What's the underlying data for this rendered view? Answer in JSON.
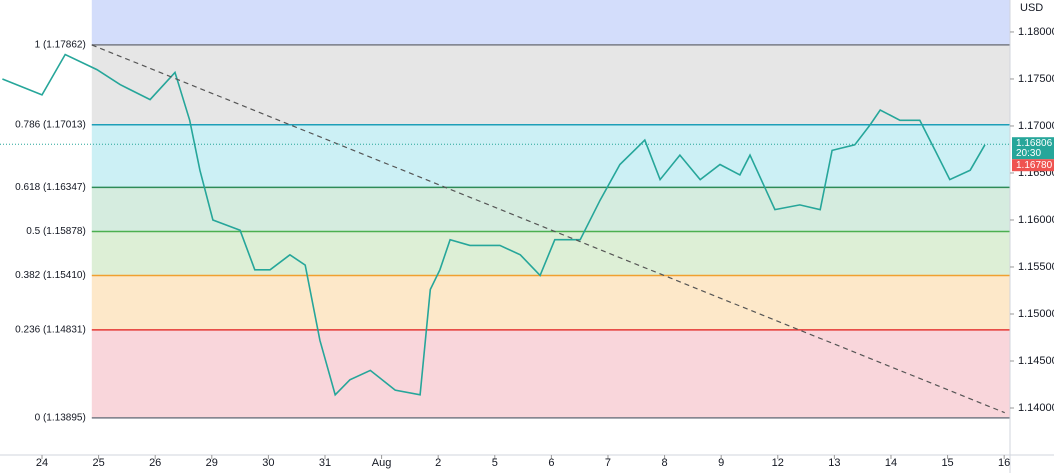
{
  "chart_data": {
    "type": "line",
    "axis_title": "USD",
    "x": [
      -0.7,
      0,
      0.41,
      0.97,
      1.38,
      1.91,
      2.35,
      2.61,
      2.79,
      3.02,
      3.5,
      3.76,
      4.03,
      4.38,
      4.65,
      4.91,
      5.18,
      5.44,
      5.8,
      6.24,
      6.68,
      6.86,
      7.03,
      7.21,
      7.56,
      8.09,
      8.45,
      8.8,
      9.06,
      9.51,
      9.86,
      10.21,
      10.65,
      10.92,
      11.27,
      11.63,
      11.98,
      12.33,
      12.51,
      12.95,
      13.39,
      13.75,
      13.96,
      14.36,
      14.63,
      14.81,
      15.16,
      15.51,
      15.78,
      16.04,
      16.4,
      16.66
    ],
    "values": [
      1.175,
      1.1733,
      1.1776,
      1.176,
      1.1744,
      1.1728,
      1.1757,
      1.1706,
      1.1653,
      1.16,
      1.1589,
      1.1547,
      1.1547,
      1.1563,
      1.1552,
      1.1472,
      1.1414,
      1.143,
      1.144,
      1.1419,
      1.1414,
      1.1526,
      1.1547,
      1.1579,
      1.1573,
      1.1573,
      1.1563,
      1.1541,
      1.1579,
      1.1579,
      1.1621,
      1.1659,
      1.1685,
      1.1643,
      1.1669,
      1.1643,
      1.1659,
      1.1648,
      1.1669,
      1.1611,
      1.1616,
      1.1611,
      1.1674,
      1.168,
      1.1701,
      1.1717,
      1.1706,
      1.1706,
      1.1674,
      1.1643,
      1.1653,
      1.168
    ],
    "color": "#26a69a",
    "xlim": [
      -0.742,
      17.103
    ],
    "xticks": [
      {
        "value": 0,
        "label": "24"
      },
      {
        "value": 1,
        "label": "25"
      },
      {
        "value": 2,
        "label": "26"
      },
      {
        "value": 3,
        "label": "29"
      },
      {
        "value": 4,
        "label": "30"
      },
      {
        "value": 5,
        "label": "31"
      },
      {
        "value": 6,
        "label": "Aug"
      },
      {
        "value": 7,
        "label": "2"
      },
      {
        "value": 8,
        "label": "5"
      },
      {
        "value": 9,
        "label": "6"
      },
      {
        "value": 10,
        "label": "7"
      },
      {
        "value": 11,
        "label": "8"
      },
      {
        "value": 12,
        "label": "9"
      },
      {
        "value": 13,
        "label": "12"
      },
      {
        "value": 14,
        "label": "13"
      },
      {
        "value": 15,
        "label": "14"
      },
      {
        "value": 16,
        "label": "15"
      },
      {
        "value": 17,
        "label": "16"
      }
    ],
    "ylim": [
      1.135,
      1.1834
    ],
    "yticks": [
      {
        "value": 1.14,
        "label": "1.14000"
      },
      {
        "value": 1.145,
        "label": "1.14500"
      },
      {
        "value": 1.15,
        "label": "1.15000"
      },
      {
        "value": 1.155,
        "label": "1.15500"
      },
      {
        "value": 1.16,
        "label": "1.16000"
      },
      {
        "value": 1.165,
        "label": "1.16500"
      },
      {
        "value": 1.17,
        "label": "1.17000"
      },
      {
        "value": 1.175,
        "label": "1.17500"
      },
      {
        "value": 1.18,
        "label": "1.18000"
      }
    ],
    "fib_start_x": 0.88,
    "top_fill": "#d3ddfb",
    "fib_levels": [
      {
        "label": "1 (1.17862)",
        "value": 1.17862,
        "color": "#787b86",
        "fill": "#e6e6e6"
      },
      {
        "label": "0.786 (1.17013)",
        "value": 1.17013,
        "color": "#1e9eb7",
        "fill": "#ccf0f5"
      },
      {
        "label": "0.618 (1.16347)",
        "value": 1.16347,
        "color": "#2e8b57",
        "fill": "#d5ecdf"
      },
      {
        "label": "0.5 (1.15878)",
        "value": 1.15878,
        "color": "#4caf50",
        "fill": "#ddefd6"
      },
      {
        "label": "0.382 (1.15410)",
        "value": 1.1541,
        "color": "#f0a030",
        "fill": "#fde8c9"
      },
      {
        "label": "0.236 (1.14831)",
        "value": 1.14831,
        "color": "#e53935",
        "fill": "#f9d6db"
      },
      {
        "label": "0 (1.13895)",
        "value": 1.13895,
        "color": "#787b86"
      }
    ],
    "trendline": {
      "x": [
        0.88,
        17.01
      ],
      "y": [
        1.17862,
        1.1395
      ],
      "color": "#555"
    },
    "last_price": {
      "value": 1.16806,
      "label": "1.16806",
      "time": "20:30",
      "color": "#26a69a"
    },
    "bid_price": {
      "value": 1.1678,
      "label": "1.16780",
      "color": "#ef5350"
    }
  }
}
